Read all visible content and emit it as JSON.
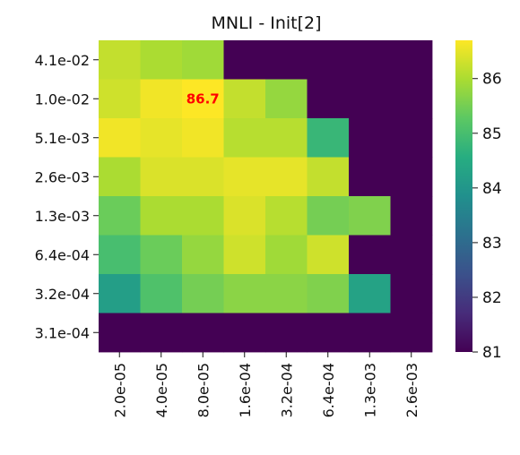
{
  "chart_data": {
    "type": "heatmap",
    "title": "MNLI - Init[2]",
    "xlabel": "",
    "ylabel": "",
    "x_categories": [
      "2.0e-05",
      "4.0e-05",
      "8.0e-05",
      "1.6e-04",
      "3.2e-04",
      "6.4e-04",
      "1.3e-03",
      "2.6e-03"
    ],
    "y_categories": [
      "4.1e-02",
      "1.0e-02",
      "5.1e-03",
      "2.6e-03",
      "1.3e-03",
      "6.4e-04",
      "3.2e-04",
      "3.1e-04"
    ],
    "values": [
      [
        86.2,
        86.0,
        85.9,
        81.0,
        81.0,
        81.0,
        81.0,
        81.0
      ],
      [
        86.3,
        86.6,
        86.7,
        86.2,
        85.8,
        81.0,
        81.0,
        81.0
      ],
      [
        86.6,
        86.5,
        86.6,
        86.1,
        86.1,
        84.8,
        81.0,
        81.0
      ],
      [
        86.0,
        86.4,
        86.4,
        86.5,
        86.5,
        86.2,
        81.0,
        81.0
      ],
      [
        85.4,
        86.0,
        86.0,
        86.4,
        86.1,
        85.5,
        85.6,
        81.0
      ],
      [
        85.0,
        85.4,
        85.8,
        86.3,
        85.9,
        86.3,
        81.0,
        81.0
      ],
      [
        84.2,
        85.1,
        85.5,
        85.7,
        85.7,
        85.6,
        84.3,
        81.0
      ],
      [
        81.0,
        81.0,
        81.0,
        81.0,
        81.0,
        81.0,
        81.0,
        81.0
      ]
    ],
    "annotation": {
      "row": 1,
      "col": 2,
      "text": "86.7",
      "color": "#ff0000"
    },
    "colorbar": {
      "min": 81,
      "max": 86.7,
      "ticks": [
        81,
        82,
        83,
        84,
        85,
        86
      ]
    },
    "colormap": "viridis",
    "grid": false,
    "legend": "colorbar-right"
  }
}
